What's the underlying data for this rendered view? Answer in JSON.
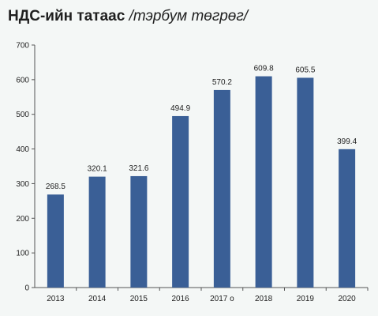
{
  "header": {
    "title_main": "НДС-ийн татаас",
    "title_sub": "/тэрбум төгрөг/"
  },
  "chart_data": {
    "type": "bar",
    "categories": [
      "2013",
      "2014",
      "2015",
      "2016",
      "2017 о",
      "2018",
      "2019",
      "2020"
    ],
    "values": [
      268.5,
      320.1,
      321.6,
      494.9,
      570.2,
      609.8,
      605.5,
      399.4
    ],
    "value_labels": [
      "268.5",
      "320.1",
      "321.6",
      "494.9",
      "570.2",
      "609.8",
      "605.5",
      "399.4"
    ],
    "ylim": [
      0,
      700
    ],
    "yticks": [
      "0",
      "100",
      "200",
      "300",
      "400",
      "500",
      "600",
      "700"
    ],
    "grid": false,
    "colors": {
      "bar": "#3a5f96",
      "axis": "#555555"
    }
  }
}
